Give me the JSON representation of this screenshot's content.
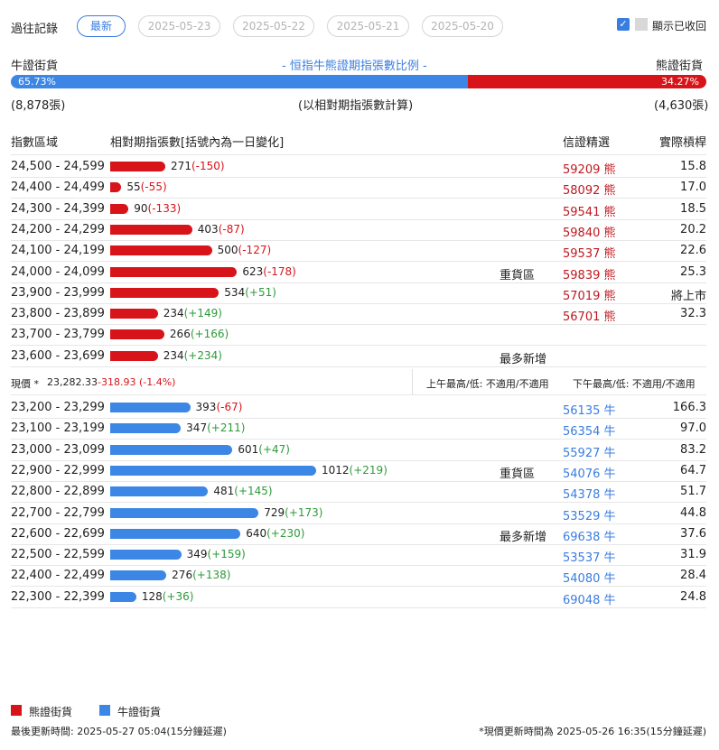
{
  "history": {
    "label": "過往記錄",
    "tabs": [
      "最新",
      "2025-05-23",
      "2025-05-22",
      "2025-05-21",
      "2025-05-20"
    ],
    "show_recalled_label": "顯示已收回"
  },
  "summary": {
    "bull_label": "牛證街貨",
    "bear_label": "熊證街貨",
    "title": "- 恒指牛熊證期指張數比例 -",
    "bull_pct": "65.73%",
    "bear_pct": "34.27%",
    "bull_fraction": 0.6573,
    "bull_count": "(8,878張)",
    "bear_count": "(4,630張)",
    "note": "(以相對期指張數計算)"
  },
  "headers": {
    "range": "指數區域",
    "contracts": "相對期指張數[括號內為一日變化]",
    "pick": "信證精選",
    "strike": "實際槓桿"
  },
  "bear_rows": [
    {
      "range": "24,500 - 24,599",
      "value": 271,
      "value_text": "271",
      "change": "(-150)",
      "change_sign": "neg",
      "note": "",
      "code": "59209 熊",
      "leverage": "15.8"
    },
    {
      "range": "24,400 - 24,499",
      "value": 55,
      "value_text": "55",
      "change": "(-55)",
      "change_sign": "neg",
      "note": "",
      "code": "58092 熊",
      "leverage": "17.0"
    },
    {
      "range": "24,300 - 24,399",
      "value": 90,
      "value_text": "90",
      "change": "(-133)",
      "change_sign": "neg",
      "note": "",
      "code": "59541 熊",
      "leverage": "18.5"
    },
    {
      "range": "24,200 - 24,299",
      "value": 403,
      "value_text": "403",
      "change": "(-87)",
      "change_sign": "neg",
      "note": "",
      "code": "59840 熊",
      "leverage": "20.2"
    },
    {
      "range": "24,100 - 24,199",
      "value": 500,
      "value_text": "500",
      "change": "(-127)",
      "change_sign": "neg",
      "note": "",
      "code": "59537 熊",
      "leverage": "22.6"
    },
    {
      "range": "24,000 - 24,099",
      "value": 623,
      "value_text": "623",
      "change": "(-178)",
      "change_sign": "neg",
      "note": "重貨區",
      "code": "59839 熊",
      "leverage": "25.3"
    },
    {
      "range": "23,900 - 23,999",
      "value": 534,
      "value_text": "534",
      "change": "(+51)",
      "change_sign": "pos",
      "note": "",
      "code": "57019 熊",
      "leverage": "將上市"
    },
    {
      "range": "23,800 - 23,899",
      "value": 234,
      "value_text": "234",
      "change": "(+149)",
      "change_sign": "pos",
      "note": "",
      "code": "56701 熊",
      "leverage": "32.3"
    },
    {
      "range": "23,700 - 23,799",
      "value": 266,
      "value_text": "266",
      "change": "(+166)",
      "change_sign": "pos",
      "note": "",
      "code": "",
      "leverage": ""
    },
    {
      "range": "23,600 - 23,699",
      "value": 234,
      "value_text": "234",
      "change": "(+234)",
      "change_sign": "pos",
      "note": "最多新增",
      "code": "",
      "leverage": ""
    }
  ],
  "current": {
    "label": "現價 *",
    "price": "23,282.33",
    "change": "-318.93 (-1.4%)",
    "am": "上午最高/低: 不適用/不適用",
    "pm": "下午最高/低: 不適用/不適用"
  },
  "bull_rows": [
    {
      "range": "23,200 - 23,299",
      "value": 393,
      "value_text": "393",
      "change": "(-67)",
      "change_sign": "neg",
      "note": "",
      "code": "56135 牛",
      "leverage": "166.3"
    },
    {
      "range": "23,100 - 23,199",
      "value": 347,
      "value_text": "347",
      "change": "(+211)",
      "change_sign": "pos",
      "note": "",
      "code": "56354 牛",
      "leverage": "97.0"
    },
    {
      "range": "23,000 - 23,099",
      "value": 601,
      "value_text": "601",
      "change": "(+47)",
      "change_sign": "pos",
      "note": "",
      "code": "55927 牛",
      "leverage": "83.2"
    },
    {
      "range": "22,900 - 22,999",
      "value": 1012,
      "value_text": "1012",
      "change": "(+219)",
      "change_sign": "pos",
      "note": "重貨區",
      "code": "54076 牛",
      "leverage": "64.7"
    },
    {
      "range": "22,800 - 22,899",
      "value": 481,
      "value_text": "481",
      "change": "(+145)",
      "change_sign": "pos",
      "note": "",
      "code": "54378 牛",
      "leverage": "51.7"
    },
    {
      "range": "22,700 - 22,799",
      "value": 729,
      "value_text": "729",
      "change": "(+173)",
      "change_sign": "pos",
      "note": "",
      "code": "53529 牛",
      "leverage": "44.8"
    },
    {
      "range": "22,600 - 22,699",
      "value": 640,
      "value_text": "640",
      "change": "(+230)",
      "change_sign": "pos",
      "note": "最多新增",
      "code": "69638 牛",
      "leverage": "37.6"
    },
    {
      "range": "22,500 - 22,599",
      "value": 349,
      "value_text": "349",
      "change": "(+159)",
      "change_sign": "pos",
      "note": "",
      "code": "53537 牛",
      "leverage": "31.9"
    },
    {
      "range": "22,400 - 22,499",
      "value": 276,
      "value_text": "276",
      "change": "(+138)",
      "change_sign": "pos",
      "note": "",
      "code": "54080 牛",
      "leverage": "28.4"
    },
    {
      "range": "22,300 - 22,399",
      "value": 128,
      "value_text": "128",
      "change": "(+36)",
      "change_sign": "pos",
      "note": "",
      "code": "69048 牛",
      "leverage": "24.8"
    }
  ],
  "legend": {
    "bear": "熊證街貨",
    "bull": "牛證街貨"
  },
  "footer": {
    "updated": "最後更新時間: 2025-05-27 05:04(15分鐘延遲)",
    "price_updated": "*現價更新時間為 2025-05-26 16:35(15分鐘延遲)"
  },
  "colors": {
    "bear": "#d7141a",
    "bull": "#3c86e6"
  }
}
